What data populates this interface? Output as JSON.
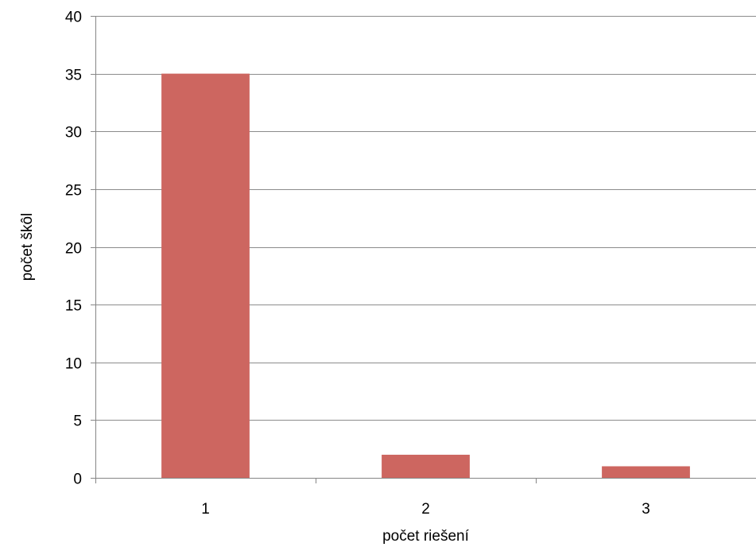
{
  "chart_data": {
    "type": "bar",
    "title": "",
    "xlabel": "počet riešení",
    "ylabel": "počet škôl",
    "categories": [
      "1",
      "2",
      "3"
    ],
    "series": [
      {
        "values": [
          35,
          2,
          1
        ]
      }
    ],
    "ylim": [
      0,
      40
    ],
    "yticks": [
      "0",
      "5",
      "10",
      "15",
      "20",
      "25",
      "30",
      "35",
      "40"
    ],
    "grid": true,
    "legend": "none",
    "bar_color": "#CD6660",
    "grid_color": "#8C8C8C",
    "axis_color": "#868686"
  }
}
